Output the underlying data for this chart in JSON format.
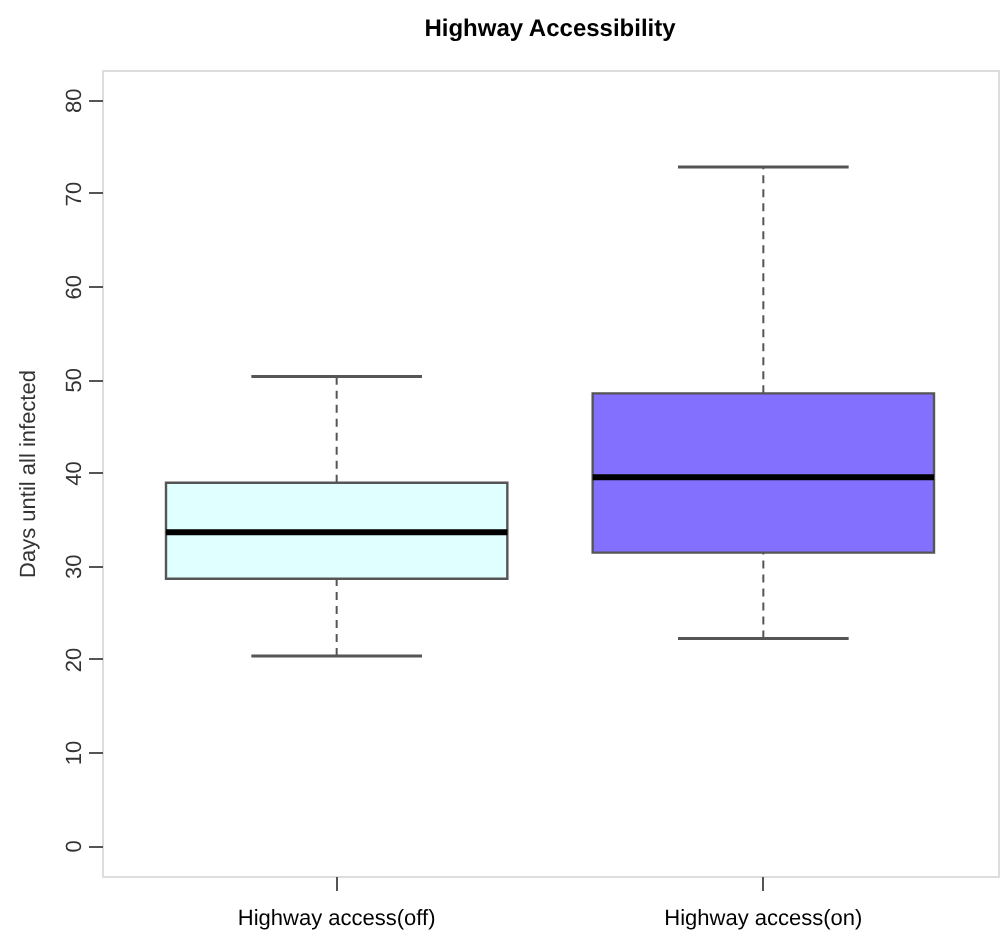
{
  "chart_data": {
    "type": "box",
    "title": "Highway Accessibility",
    "ylabel": "Days until all infected",
    "categories": [
      "Highway access(off)",
      "Highway access(on)"
    ],
    "colors": [
      "#e0ffff",
      "#8470ff"
    ],
    "boxes": [
      {
        "low": 20.3,
        "q1": 28.6,
        "median": 33.6,
        "q3": 38.9,
        "high": 50.3
      },
      {
        "low": 22.2,
        "q1": 31.4,
        "median": 39.5,
        "q3": 48.5,
        "high": 72.8
      }
    ],
    "ylim": [
      -3.3,
      83.2
    ],
    "yticks": [
      0,
      10,
      20,
      30,
      40,
      50,
      60,
      70,
      80
    ],
    "grid": false
  }
}
